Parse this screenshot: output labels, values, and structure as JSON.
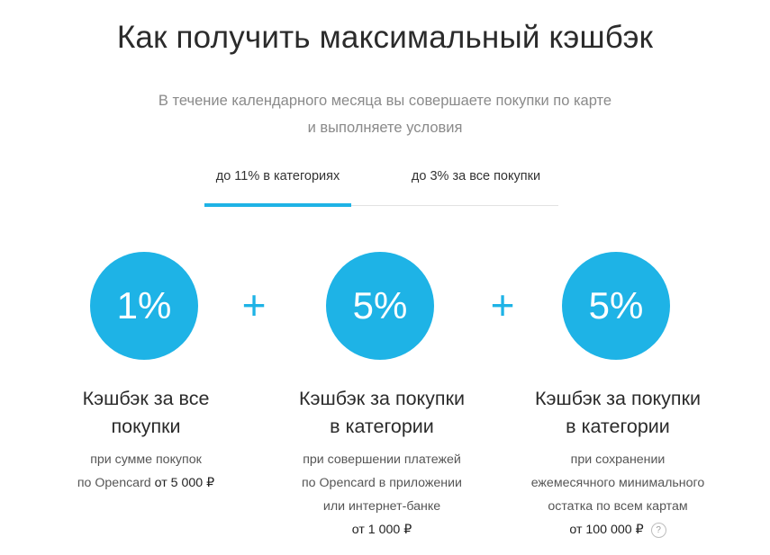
{
  "title": "Как получить максимальный кэшбэк",
  "subtitle": {
    "line1": "В течение календарного месяца вы совершаете покупки по карте",
    "line2": "и выполняете условия"
  },
  "tabs": [
    {
      "label": "до 11% в категориях",
      "active": true
    },
    {
      "label": "до 3% за все покупки",
      "active": false
    }
  ],
  "colors": {
    "accent": "#1eb3e6"
  },
  "plus_sign": "+",
  "cards": [
    {
      "percent": "1%",
      "heading": [
        "Кэшбэк за все",
        "покупки"
      ],
      "desc": [
        "при сумме покупок",
        "по Opencard"
      ],
      "amount": "от 5 000 ₽"
    },
    {
      "percent": "5%",
      "heading": [
        "Кэшбэк за покупки",
        "в категории"
      ],
      "desc": [
        "при совершении платежей",
        "по Opencard в приложении",
        "или интернет-банке"
      ],
      "amount": "от 1 000 ₽"
    },
    {
      "percent": "5%",
      "heading": [
        "Кэшбэк за покупки",
        "в категории"
      ],
      "desc": [
        "при сохранении",
        "ежемесячного минимального",
        "остатка по всем картам"
      ],
      "amount": "от 100 000 ₽",
      "help": "?"
    }
  ]
}
